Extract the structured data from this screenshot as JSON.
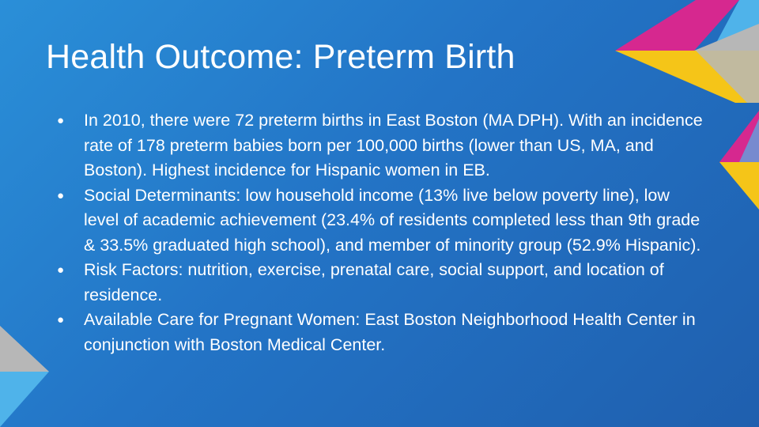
{
  "slide": {
    "title": "Health Outcome: Preterm Birth",
    "bullets": [
      "In 2010, there were 72 preterm births in East Boston (MA DPH). With an incidence rate of 178 preterm babies born per 100,000 births (lower than US, MA, and Boston). Highest incidence for Hispanic women in EB.",
      "Social Determinants: low household income (13% live below poverty line), low level of academic achievement (23.4% of residents completed less than 9th grade & 33.5% graduated high school), and member of minority group (52.9% Hispanic).",
      "Risk Factors: nutrition, exercise, prenatal care, social support, and location of residence.",
      "Available Care for Pregnant Women: East Boston Neighborhood Health Center in conjunction with Boston Medical Center."
    ]
  },
  "colors": {
    "background": "#2374c6",
    "magenta": "#d6288f",
    "yellow": "#f5c518",
    "gray": "#b7b7b7",
    "light_blue": "#4fb3ea"
  }
}
